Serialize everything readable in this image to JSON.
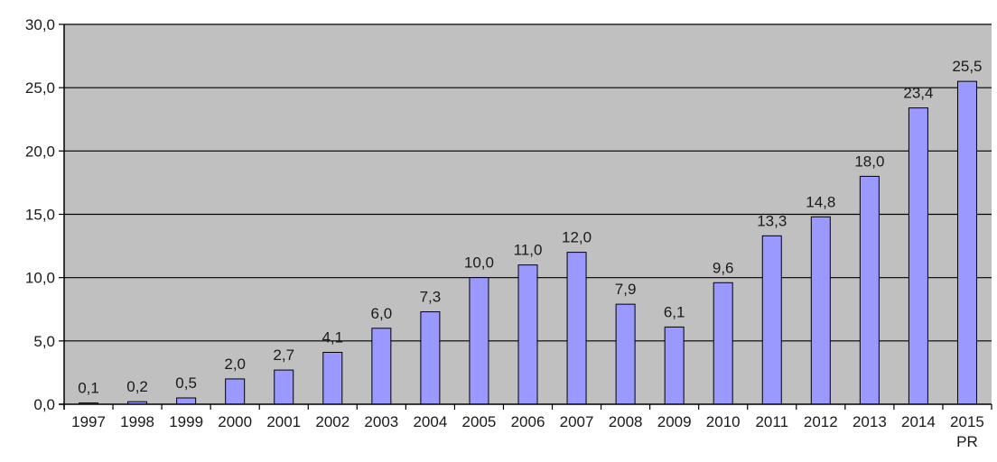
{
  "chart_data": {
    "type": "bar",
    "title": "",
    "xlabel": "",
    "ylabel": "",
    "ylim": [
      0,
      30
    ],
    "ytick_values": [
      0,
      5,
      10,
      15,
      20,
      25,
      30
    ],
    "ytick_labels": [
      "0,0",
      "5,0",
      "10,0",
      "15,0",
      "20,0",
      "25,0",
      "30,0"
    ],
    "categories": [
      "1997",
      "1998",
      "1999",
      "2000",
      "2001",
      "2002",
      "2003",
      "2004",
      "2005",
      "2006",
      "2007",
      "2008",
      "2009",
      "2010",
      "2011",
      "2012",
      "2013",
      "2014",
      "2015"
    ],
    "category_sublabels": [
      "",
      "",
      "",
      "",
      "",
      "",
      "",
      "",
      "",
      "",
      "",
      "",
      "",
      "",
      "",
      "",
      "",
      "",
      "PR"
    ],
    "values": [
      0.1,
      0.2,
      0.5,
      2.0,
      2.7,
      4.1,
      6.0,
      7.3,
      10.0,
      11.0,
      12.0,
      7.9,
      6.1,
      9.6,
      13.3,
      14.8,
      18.0,
      23.4,
      25.5
    ],
    "value_labels": [
      "0,1",
      "0,2",
      "0,5",
      "2,0",
      "2,7",
      "4,1",
      "6,0",
      "7,3",
      "10,0",
      "11,0",
      "12,0",
      "7,9",
      "6,1",
      "9,6",
      "13,3",
      "14,8",
      "18,0",
      "23,4",
      "25,5"
    ],
    "grid": true,
    "legend": "none",
    "colors": {
      "bar_fill": "#9999ff",
      "bar_stroke": "#000000",
      "plot_background": "#c0c0c0",
      "gridline": "#000000"
    }
  }
}
